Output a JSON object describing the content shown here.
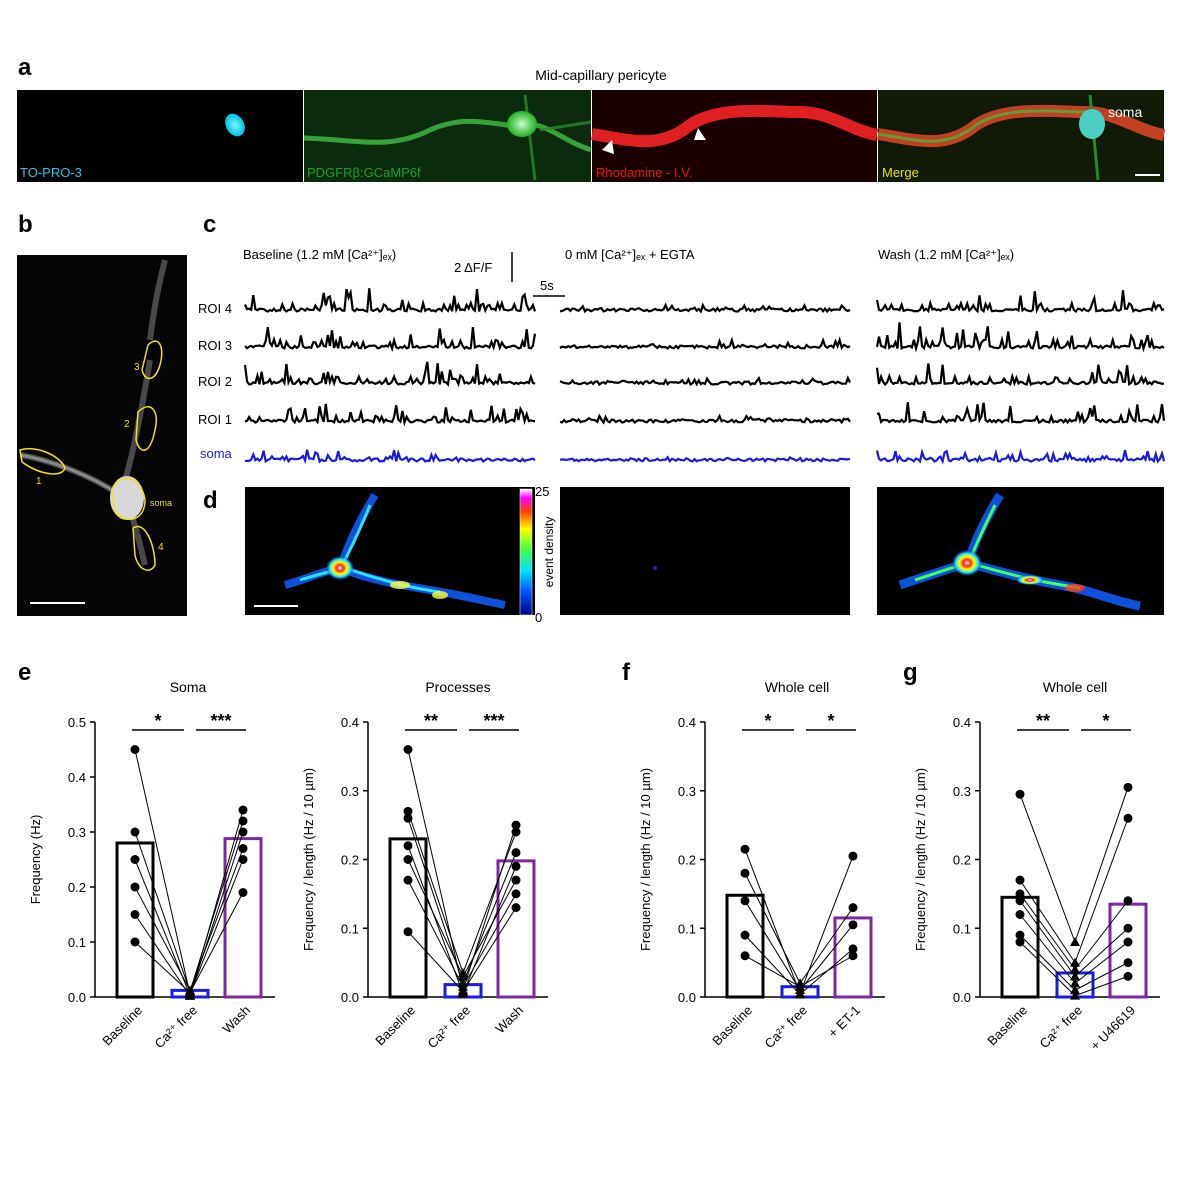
{
  "panel_a": {
    "letter": "a",
    "title": "Mid-capillary pericyte",
    "tiles": [
      {
        "label": "TO-PRO-3",
        "color": "#1ec8e8"
      },
      {
        "label": "PDGFRβ:GCaMP6f",
        "color": "#1aa030"
      },
      {
        "label": "Rhodamine - I.V.",
        "color": "#e01818"
      },
      {
        "label": "Merge",
        "color": "#e8e020"
      }
    ],
    "soma_label": "soma"
  },
  "panel_b": {
    "letter": "b",
    "roi_labels": [
      "1",
      "2",
      "3",
      "4",
      "soma"
    ]
  },
  "panel_c": {
    "letter": "c",
    "conditions": [
      "Baseline (1.2 mM [Ca²⁺]ₑₓ)",
      "0 mM [Ca²⁺]ₑₓ + EGTA",
      "Wash (1.2 mM [Ca²⁺]ₑₓ)"
    ],
    "scale_y": "2 ΔF/F",
    "scale_x": "5s",
    "rows": [
      "ROI 4",
      "ROI 3",
      "ROI 2",
      "ROI 1",
      "soma"
    ],
    "soma_color": "#1a1ae0"
  },
  "panel_d": {
    "letter": "d",
    "colorbar_max": "25",
    "colorbar_min": "0",
    "colorbar_label": "event density"
  },
  "panel_e": {
    "letter": "e"
  },
  "panel_f": {
    "letter": "f"
  },
  "panel_g": {
    "letter": "g"
  },
  "chart_data": [
    {
      "type": "bar",
      "title": "Soma",
      "categories": [
        "Baseline",
        "Ca²⁺ free",
        "Wash"
      ],
      "values": [
        0.28,
        0.012,
        0.288
      ],
      "ylabel": "Frequency (Hz)",
      "ylim": [
        0,
        0.5
      ],
      "yticks": [
        "0.0",
        "0.1",
        "0.2",
        "0.3",
        "0.4",
        "0.5"
      ],
      "bar_colors": [
        "#000000",
        "#1a1ae0",
        "#7b2a9e"
      ],
      "points": [
        [
          0.45,
          0.005,
          0.25
        ],
        [
          0.3,
          0.01,
          0.32
        ],
        [
          0.25,
          0.003,
          0.3
        ],
        [
          0.2,
          0.012,
          0.27
        ],
        [
          0.15,
          0.002,
          0.34
        ],
        [
          0.1,
          0.008,
          0.19
        ]
      ],
      "significance": [
        "*",
        "***"
      ]
    },
    {
      "type": "bar",
      "title": "Processes",
      "categories": [
        "Baseline",
        "Ca²⁺ free",
        "Wash"
      ],
      "values": [
        0.23,
        0.018,
        0.198
      ],
      "ylabel": "Frequency / length (Hz / 10 µm)",
      "ylim": [
        0,
        0.4
      ],
      "yticks": [
        "0.0",
        "0.1",
        "0.2",
        "0.3",
        "0.4"
      ],
      "bar_colors": [
        "#000000",
        "#1a1ae0",
        "#7b2a9e"
      ],
      "points": [
        [
          0.36,
          0.01,
          0.25
        ],
        [
          0.27,
          0.035,
          0.24
        ],
        [
          0.26,
          0.02,
          0.21
        ],
        [
          0.22,
          0.005,
          0.19
        ],
        [
          0.2,
          0.03,
          0.17
        ],
        [
          0.17,
          0.015,
          0.15
        ],
        [
          0.095,
          0.008,
          0.13
        ]
      ],
      "significance": [
        "**",
        "***"
      ]
    },
    {
      "type": "bar",
      "title": "Whole cell",
      "categories": [
        "Baseline",
        "Ca²⁺ free",
        "+ ET-1"
      ],
      "values": [
        0.148,
        0.015,
        0.115
      ],
      "ylabel": "Frequency / length (Hz / 10 µm)",
      "ylim": [
        0,
        0.4
      ],
      "yticks": [
        "0.0",
        "0.1",
        "0.2",
        "0.3",
        "0.4"
      ],
      "bar_colors": [
        "#000000",
        "#1a1ae0",
        "#7b2a9e"
      ],
      "points": [
        [
          0.215,
          0.005,
          0.205
        ],
        [
          0.18,
          0.02,
          0.13
        ],
        [
          0.14,
          0.01,
          0.105
        ],
        [
          0.09,
          0.004,
          0.07
        ],
        [
          0.06,
          0.015,
          0.06
        ]
      ],
      "significance": [
        "*",
        "*"
      ]
    },
    {
      "type": "bar",
      "title": "Whole cell",
      "categories": [
        "Baseline",
        "Ca²⁺ free",
        "+ U46619"
      ],
      "values": [
        0.145,
        0.035,
        0.135
      ],
      "ylabel": "Frequency / length (Hz / 10 µm)",
      "ylim": [
        0,
        0.4
      ],
      "yticks": [
        "0.0",
        "0.1",
        "0.2",
        "0.3",
        "0.4"
      ],
      "bar_colors": [
        "#000000",
        "#1a1ae0",
        "#7b2a9e"
      ],
      "points": [
        [
          0.295,
          0.08,
          0.305
        ],
        [
          0.17,
          0.05,
          0.26
        ],
        [
          0.15,
          0.04,
          0.14
        ],
        [
          0.14,
          0.03,
          0.1
        ],
        [
          0.12,
          0.02,
          0.08
        ],
        [
          0.09,
          0.01,
          0.05
        ],
        [
          0.08,
          0.002,
          0.03
        ]
      ],
      "significance": [
        "**",
        "*"
      ]
    }
  ]
}
